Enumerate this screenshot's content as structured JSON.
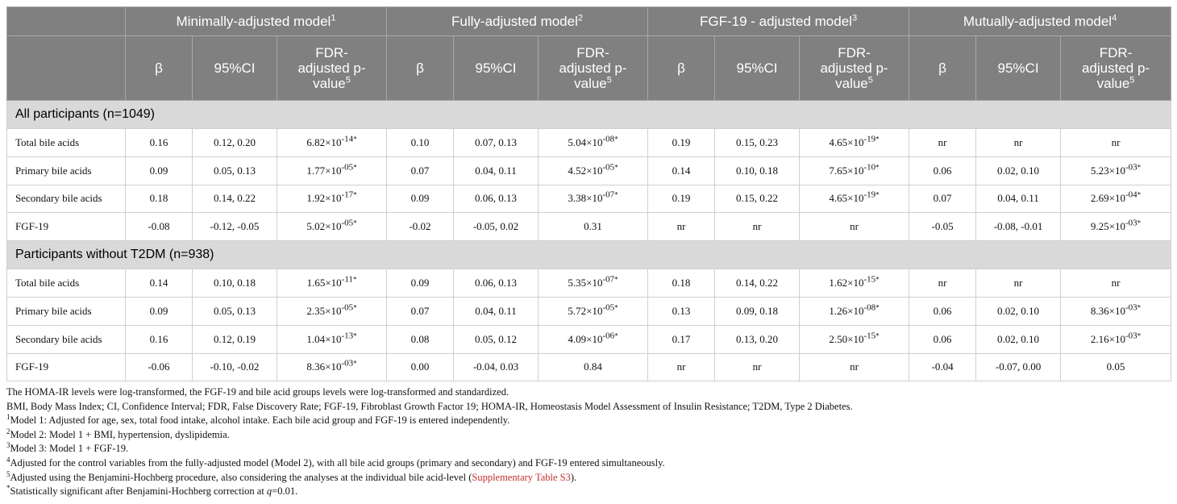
{
  "table": {
    "groups": [
      {
        "text": "Minimally-adjusted model",
        "sup": "1"
      },
      {
        "text": "Fully-adjusted model",
        "sup": "2"
      },
      {
        "text": "FGF-19 - adjusted model",
        "sup": "3"
      },
      {
        "text": "Mutually-adjusted model",
        "sup": "4"
      }
    ],
    "columns": [
      [
        {
          "text": "β"
        },
        {
          "text": "95%CI"
        },
        {
          "text": "FDR-adjusted p-value",
          "sup": "5"
        }
      ],
      [
        {
          "text": "β"
        },
        {
          "text": "95%CI"
        },
        {
          "text": "FDR-adjusted p-value",
          "sup": "5"
        }
      ],
      [
        {
          "text": "β"
        },
        {
          "text": "95%CI"
        },
        {
          "text": "FDR-adjusted p-value",
          "sup": "5"
        }
      ],
      [
        {
          "text": "β"
        },
        {
          "text": "95%CI"
        },
        {
          "text": "FDR-adjusted p-value",
          "sup": "5"
        }
      ]
    ],
    "sections": [
      {
        "title": "All participants (n=1049)",
        "rows": [
          {
            "label": "Total bile acids",
            "cells": [
              "0.16",
              "0.12, 0.20",
              {
                "base": "6.82×10",
                "sup": "-14",
                "mark": "*"
              },
              "0.10",
              "0.07, 0.13",
              {
                "base": "5.04×10",
                "sup": "-08",
                "mark": "*"
              },
              "0.19",
              "0.15, 0.23",
              {
                "base": "4.65×10",
                "sup": "-19",
                "mark": "*"
              },
              "nr",
              "nr",
              "nr"
            ]
          },
          {
            "label": "Primary bile acids",
            "cells": [
              "0.09",
              "0.05, 0.13",
              {
                "base": "1.77×10",
                "sup": "-05",
                "mark": "*"
              },
              "0.07",
              "0.04, 0.11",
              {
                "base": "4.52×10",
                "sup": "-05",
                "mark": "*"
              },
              "0.14",
              "0.10, 0.18",
              {
                "base": "7.65×10",
                "sup": "-10",
                "mark": "*"
              },
              "0.06",
              "0.02, 0.10",
              {
                "base": "5.23×10",
                "sup": "-03",
                "mark": "*"
              }
            ]
          },
          {
            "label": "Secondary bile acids",
            "cells": [
              "0.18",
              "0.14, 0.22",
              {
                "base": "1.92×10",
                "sup": "-17",
                "mark": "*"
              },
              "0.09",
              "0.06, 0.13",
              {
                "base": "3.38×10",
                "sup": "-07",
                "mark": "*"
              },
              "0.19",
              "0.15, 0.22",
              {
                "base": "4.65×10",
                "sup": "-19",
                "mark": "*"
              },
              "0.07",
              "0.04, 0.11",
              {
                "base": "2.69×10",
                "sup": "-04",
                "mark": "*"
              }
            ]
          },
          {
            "label": "FGF-19",
            "cells": [
              "-0.08",
              "-0.12, -0.05",
              {
                "base": "5.02×10",
                "sup": "-05",
                "mark": "*"
              },
              "-0.02",
              "-0.05, 0.02",
              "0.31",
              "nr",
              "nr",
              "nr",
              "-0.05",
              "-0.08, -0.01",
              {
                "base": "9.25×10",
                "sup": "-03",
                "mark": "*"
              }
            ]
          }
        ]
      },
      {
        "title": "Participants without T2DM (n=938)",
        "rows": [
          {
            "label": "Total bile acids",
            "cells": [
              "0.14",
              "0.10, 0.18",
              {
                "base": "1.65×10",
                "sup": "-11",
                "mark": "*"
              },
              "0.09",
              "0.06, 0.13",
              {
                "base": "5.35×10",
                "sup": "-07",
                "mark": "*"
              },
              "0.18",
              "0.14, 0.22",
              {
                "base": "1.62×10",
                "sup": "-15",
                "mark": "*"
              },
              "nr",
              "nr",
              "nr"
            ]
          },
          {
            "label": "Primary bile acids",
            "cells": [
              "0.09",
              "0.05, 0.13",
              {
                "base": "2.35×10",
                "sup": "-05",
                "mark": "*"
              },
              "0.07",
              "0.04, 0.11",
              {
                "base": "5.72×10",
                "sup": "-05",
                "mark": "*"
              },
              "0.13",
              "0.09, 0.18",
              {
                "base": "1.26×10",
                "sup": "-08",
                "mark": "*"
              },
              "0.06",
              "0.02, 0.10",
              {
                "base": "8.36×10",
                "sup": "-03",
                "mark": "*"
              }
            ]
          },
          {
            "label": "Secondary bile acids",
            "cells": [
              "0.16",
              "0.12, 0.19",
              {
                "base": "1.04×10",
                "sup": "-13",
                "mark": "*"
              },
              "0.08",
              "0.05, 0.12",
              {
                "base": "4.09×10",
                "sup": "-06",
                "mark": "*"
              },
              "0.17",
              "0.13, 0.20",
              {
                "base": "2.50×10",
                "sup": "-15",
                "mark": "*"
              },
              "0.06",
              "0.02, 0.10",
              {
                "base": "2.16×10",
                "sup": "-03",
                "mark": "*"
              }
            ]
          },
          {
            "label": "FGF-19",
            "cells": [
              "-0.06",
              "-0.10, -0.02",
              {
                "base": "8.36×10",
                "sup": "-03",
                "mark": "*"
              },
              "0.00",
              "-0.04, 0.03",
              "0.84",
              "nr",
              "nr",
              "nr",
              "-0.04",
              "-0.07, 0.00",
              "0.05"
            ]
          }
        ]
      }
    ]
  },
  "notes": [
    {
      "parts": [
        {
          "text": "The HOMA-IR levels were log-transformed, the FGF-19 and bile acid groups levels were log-transformed and standardized."
        }
      ]
    },
    {
      "parts": [
        {
          "text": "BMI, Body Mass Index; CI, Confidence Interval; FDR, False Discovery Rate; FGF-19, Fibroblast Growth Factor 19; HOMA-IR, Homeostasis Model Assessment of Insulin Resistance; T2DM, Type 2 Diabetes."
        }
      ]
    },
    {
      "sup": "1",
      "parts": [
        {
          "text": "Model 1: Adjusted for age, sex, total food intake, alcohol intake. Each bile acid group and FGF-19 is entered independently."
        }
      ]
    },
    {
      "sup": "2",
      "parts": [
        {
          "text": "Model 2: Model 1 + BMI, hypertension, dyslipidemia."
        }
      ]
    },
    {
      "sup": "3",
      "parts": [
        {
          "text": "Model 3: Model 1 + FGF-19."
        }
      ]
    },
    {
      "sup": "4",
      "parts": [
        {
          "text": "Adjusted for the control variables from the fully-adjusted model (Model 2), with all bile acid groups (primary and secondary) and FGF-19 entered simultaneously."
        }
      ]
    },
    {
      "sup": "5",
      "parts": [
        {
          "text": "Adjusted using the Benjamini-Hochberg procedure, also considering the analyses at the individual bile acid-level ("
        },
        {
          "text": "Supplementary Table S3",
          "style": "link"
        },
        {
          "text": ")."
        }
      ]
    },
    {
      "sup": "*",
      "parts": [
        {
          "text": "Statistically significant after Benjamini-Hochberg correction at "
        },
        {
          "text": "q",
          "style": "italic"
        },
        {
          "text": "=0.01."
        }
      ]
    }
  ]
}
